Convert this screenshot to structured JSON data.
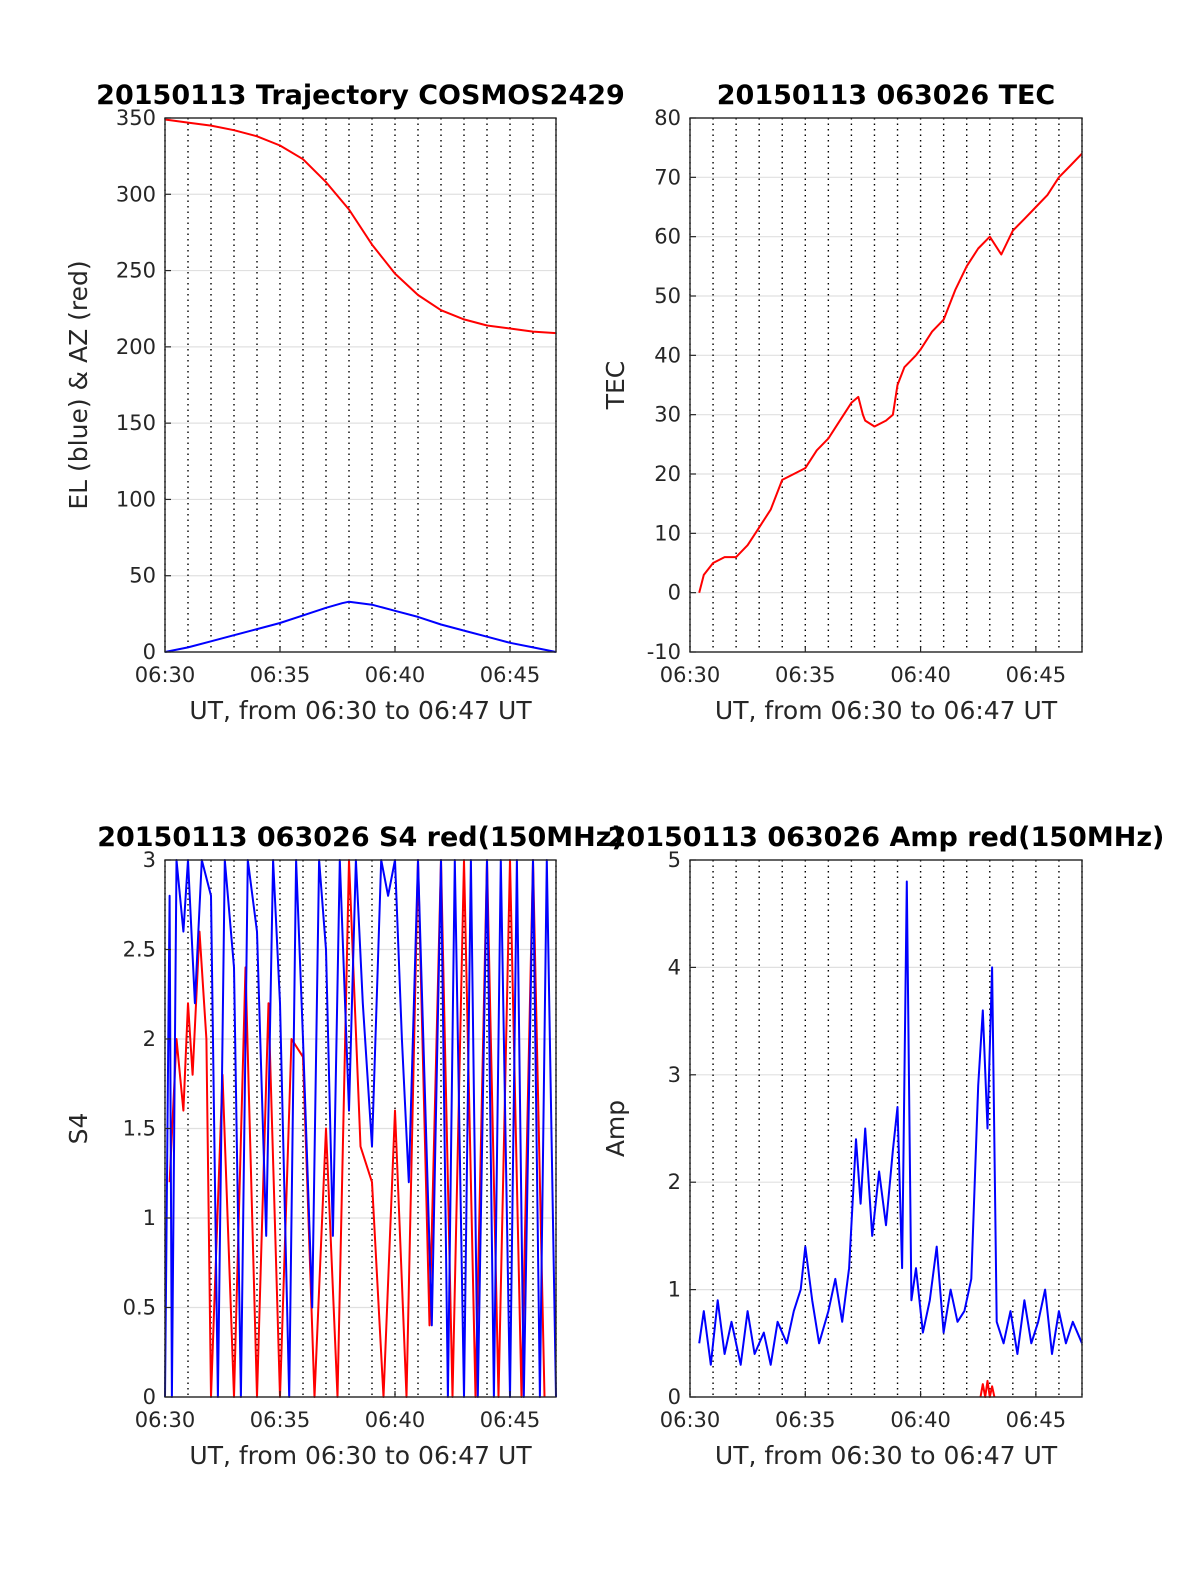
{
  "chart_data": [
    {
      "type": "line",
      "title": "20150113 Trajectory COSMOS2429",
      "xlabel": "UT, from 06:30 to 06:47 UT",
      "ylabel": "EL (blue) & AZ (red)",
      "xlim": [
        0,
        17
      ],
      "ylim": [
        0,
        350
      ],
      "xticks": [
        0,
        5,
        10,
        15
      ],
      "xtick_labels": [
        "06:30",
        "06:35",
        "06:40",
        "06:45"
      ],
      "yticks": [
        0,
        50,
        100,
        150,
        200,
        250,
        300,
        350
      ],
      "ytick_labels": [
        "0",
        "50",
        "100",
        "150",
        "200",
        "250",
        "300",
        "350"
      ],
      "grid": true,
      "series": [
        {
          "color": "#ff0000",
          "x": [
            0,
            1,
            2,
            3,
            4,
            5,
            6,
            7,
            8,
            9,
            10,
            11,
            12,
            13,
            14,
            15,
            16,
            17
          ],
          "values": [
            349,
            347,
            345,
            342,
            338,
            332,
            323,
            308,
            290,
            267,
            248,
            234,
            224,
            218,
            214,
            212,
            210,
            209
          ]
        },
        {
          "color": "#0000ff",
          "x": [
            0,
            1,
            2,
            3,
            4,
            5,
            6,
            7,
            7.7,
            8,
            9,
            10,
            11,
            12,
            13,
            14,
            15,
            16,
            17
          ],
          "values": [
            0,
            3,
            7,
            11,
            15,
            19,
            24,
            29,
            32,
            33,
            31,
            27,
            23,
            18,
            14,
            10,
            6,
            3,
            0
          ]
        }
      ]
    },
    {
      "type": "line",
      "title": "20150113 063026 TEC",
      "xlabel": "UT, from 06:30 to 06:47 UT",
      "ylabel": "TEC",
      "xlim": [
        0,
        17
      ],
      "ylim": [
        -10,
        80
      ],
      "xticks": [
        0,
        5,
        10,
        15
      ],
      "xtick_labels": [
        "06:30",
        "06:35",
        "06:40",
        "06:45"
      ],
      "yticks": [
        -10,
        0,
        10,
        20,
        30,
        40,
        50,
        60,
        70,
        80
      ],
      "ytick_labels": [
        "-10",
        "0",
        "10",
        "20",
        "30",
        "40",
        "50",
        "60",
        "70",
        "80"
      ],
      "grid": true,
      "series": [
        {
          "color": "#ff0000",
          "x": [
            0.4,
            0.6,
            1.0,
            1.5,
            2.0,
            2.5,
            3.0,
            3.5,
            4.0,
            4.5,
            5.0,
            5.5,
            6.0,
            6.5,
            7.0,
            7.3,
            7.5,
            7.6,
            8.0,
            8.5,
            8.8,
            9.0,
            9.3,
            9.8,
            10.0,
            10.5,
            11.0,
            11.5,
            12.0,
            12.5,
            13.0,
            13.5,
            14.0,
            14.5,
            15.0,
            15.5,
            16.0,
            16.5,
            17.0
          ],
          "values": [
            0,
            3,
            5,
            6,
            6,
            8,
            11,
            14,
            19,
            20,
            21,
            24,
            26,
            29,
            32,
            33,
            30,
            29,
            28,
            29,
            30,
            35,
            38,
            40,
            41,
            44,
            46,
            51,
            55,
            58,
            60,
            57,
            61,
            63,
            65,
            67,
            70,
            72,
            74
          ]
        }
      ]
    },
    {
      "type": "line",
      "title": "20150113 063026 S4 red(150MHz)",
      "xlabel": "UT, from 06:30 to 06:47 UT",
      "ylabel": "S4",
      "xlim": [
        0,
        17
      ],
      "ylim": [
        0,
        3
      ],
      "xticks": [
        0,
        5,
        10,
        15
      ],
      "xtick_labels": [
        "06:30",
        "06:35",
        "06:40",
        "06:45"
      ],
      "yticks": [
        0,
        0.5,
        1,
        1.5,
        2,
        2.5,
        3
      ],
      "ytick_labels": [
        "0",
        "0.5",
        "1",
        "1.5",
        "2",
        "2.5",
        "3"
      ],
      "grid": true,
      "series": [
        {
          "color": "#ff0000",
          "x": [
            0.2,
            0.5,
            0.8,
            1.0,
            1.2,
            1.5,
            1.8,
            2.0,
            2.5,
            3.0,
            3.5,
            4.0,
            4.5,
            5.0,
            5.5,
            6.0,
            6.5,
            7.0,
            7.5,
            8.0,
            8.5,
            9.0,
            9.5,
            10.0,
            10.5,
            11.0,
            11.5,
            12.0,
            12.5,
            13.0,
            13.5,
            14.0,
            14.5,
            15.0,
            15.5,
            16.0,
            16.5
          ],
          "values": [
            1.2,
            2.0,
            1.6,
            2.2,
            1.8,
            2.6,
            2.0,
            0,
            1.8,
            0,
            2.4,
            0,
            2.2,
            0,
            2.0,
            1.9,
            0,
            1.5,
            0,
            3,
            1.4,
            1.2,
            0,
            1.6,
            0,
            3,
            0.4,
            3,
            0,
            3,
            0,
            3,
            0,
            3,
            0,
            3,
            0
          ]
        },
        {
          "color": "#0000ff",
          "x": [
            0,
            0.2,
            0.3,
            0.5,
            0.8,
            1.0,
            1.3,
            1.6,
            2.0,
            2.3,
            2.6,
            3.0,
            3.3,
            3.6,
            4.0,
            4.4,
            4.7,
            5.0,
            5.4,
            5.7,
            6.0,
            6.4,
            6.7,
            7.0,
            7.3,
            7.6,
            8.0,
            8.3,
            8.6,
            9.0,
            9.4,
            9.7,
            10.0,
            10.3,
            10.6,
            11.0,
            11.3,
            11.6,
            12.0,
            12.3,
            12.6,
            13.0,
            13.3,
            13.6,
            14.0,
            14.3,
            14.6,
            15.0,
            15.3,
            15.6,
            16.0,
            16.3,
            16.6,
            17.0
          ],
          "values": [
            0,
            2.8,
            0,
            3,
            2.6,
            3,
            2.2,
            3,
            2.8,
            0,
            3,
            2.4,
            0,
            3,
            2.6,
            0.9,
            3,
            2.2,
            0,
            3,
            2.0,
            0.5,
            3,
            2.5,
            0.9,
            3,
            1.6,
            3,
            2.2,
            1.4,
            3,
            2.8,
            3,
            2.0,
            1.2,
            3,
            1.7,
            0.4,
            3,
            0,
            3,
            0,
            3,
            0,
            3,
            0,
            3,
            0,
            3,
            0,
            3,
            0,
            3,
            0
          ]
        }
      ]
    },
    {
      "type": "line",
      "title": "20150113 063026 Amp red(150MHz)",
      "xlabel": "UT, from 06:30 to 06:47 UT",
      "ylabel": "Amp",
      "xlim": [
        0,
        17
      ],
      "ylim": [
        0,
        5
      ],
      "xticks": [
        0,
        5,
        10,
        15
      ],
      "xtick_labels": [
        "06:30",
        "06:35",
        "06:40",
        "06:45"
      ],
      "yticks": [
        0,
        1,
        2,
        3,
        4,
        5
      ],
      "ytick_labels": [
        "0",
        "1",
        "2",
        "3",
        "4",
        "5"
      ],
      "grid": true,
      "series": [
        {
          "color": "#ff0000",
          "x": [
            12.6,
            12.7,
            12.8,
            12.9,
            13.0,
            13.1,
            13.2
          ],
          "values": [
            0,
            0.12,
            0,
            0.15,
            0,
            0.1,
            0
          ]
        },
        {
          "color": "#0000ff",
          "x": [
            0.4,
            0.6,
            0.9,
            1.2,
            1.5,
            1.8,
            2.2,
            2.5,
            2.8,
            3.2,
            3.5,
            3.8,
            4.2,
            4.5,
            4.8,
            5.0,
            5.3,
            5.6,
            6.0,
            6.3,
            6.6,
            6.9,
            7.2,
            7.4,
            7.6,
            7.9,
            8.2,
            8.5,
            8.8,
            9.0,
            9.2,
            9.4,
            9.6,
            9.8,
            10.1,
            10.4,
            10.7,
            11.0,
            11.3,
            11.6,
            11.9,
            12.2,
            12.5,
            12.7,
            12.9,
            13.1,
            13.3,
            13.6,
            13.9,
            14.2,
            14.5,
            14.8,
            15.1,
            15.4,
            15.7,
            16.0,
            16.3,
            16.6,
            17.0
          ],
          "values": [
            0.5,
            0.8,
            0.3,
            0.9,
            0.4,
            0.7,
            0.3,
            0.8,
            0.4,
            0.6,
            0.3,
            0.7,
            0.5,
            0.8,
            1.0,
            1.4,
            0.9,
            0.5,
            0.8,
            1.1,
            0.7,
            1.2,
            2.4,
            1.8,
            2.5,
            1.5,
            2.1,
            1.6,
            2.3,
            2.7,
            1.2,
            4.8,
            0.9,
            1.2,
            0.6,
            0.9,
            1.4,
            0.6,
            1.0,
            0.7,
            0.8,
            1.1,
            2.9,
            3.6,
            2.5,
            4.0,
            0.7,
            0.5,
            0.8,
            0.4,
            0.9,
            0.5,
            0.7,
            1.0,
            0.4,
            0.8,
            0.5,
            0.7,
            0.5
          ]
        }
      ]
    }
  ]
}
